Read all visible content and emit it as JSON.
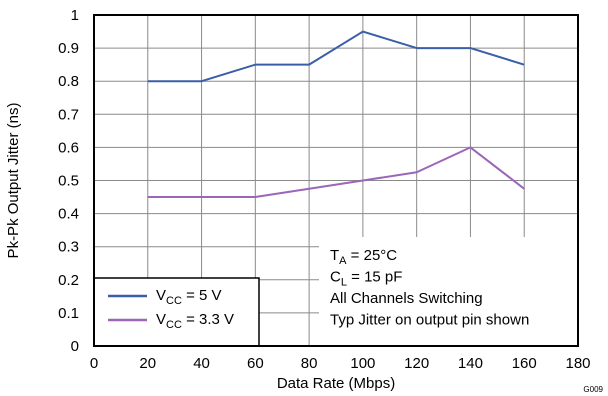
{
  "chart_data": {
    "type": "line",
    "xlabel": "Data Rate (Mbps)",
    "ylabel": "Pk-Pk Output Jitter (ns)",
    "xlim": [
      0,
      180
    ],
    "ylim": [
      0,
      1
    ],
    "xticks": [
      0,
      20,
      40,
      60,
      80,
      100,
      120,
      140,
      160,
      180
    ],
    "yticks": [
      0,
      0.1,
      0.2,
      0.3,
      0.4,
      0.5,
      0.6,
      0.7,
      0.8,
      0.9,
      1
    ],
    "grid": true,
    "legend_position": "bottom-left",
    "series": [
      {
        "name_main": "V",
        "name_sub": "CC",
        "name_rest": " = 5 V",
        "color": "#3a5ea8",
        "x": [
          20,
          40,
          60,
          80,
          100,
          120,
          140,
          160
        ],
        "y": [
          0.8,
          0.8,
          0.85,
          0.85,
          0.95,
          0.9,
          0.9,
          0.85
        ]
      },
      {
        "name_main": "V",
        "name_sub": "CC",
        "name_rest": " = 3.3 V",
        "color": "#9b66b8",
        "x": [
          20,
          40,
          60,
          80,
          100,
          120,
          140,
          160
        ],
        "y": [
          0.45,
          0.45,
          0.45,
          0.475,
          0.5,
          0.525,
          0.6,
          0.475
        ]
      }
    ],
    "annotations": [
      {
        "main": "T",
        "sub": "A",
        "rest": " = 25°C"
      },
      {
        "main": "C",
        "sub": "L",
        "rest": " = 15 pF"
      },
      {
        "main": "All Channels Switching",
        "sub": "",
        "rest": ""
      },
      {
        "main": "Typ Jitter on output pin shown",
        "sub": "",
        "rest": ""
      }
    ],
    "figure_id": "G009"
  }
}
